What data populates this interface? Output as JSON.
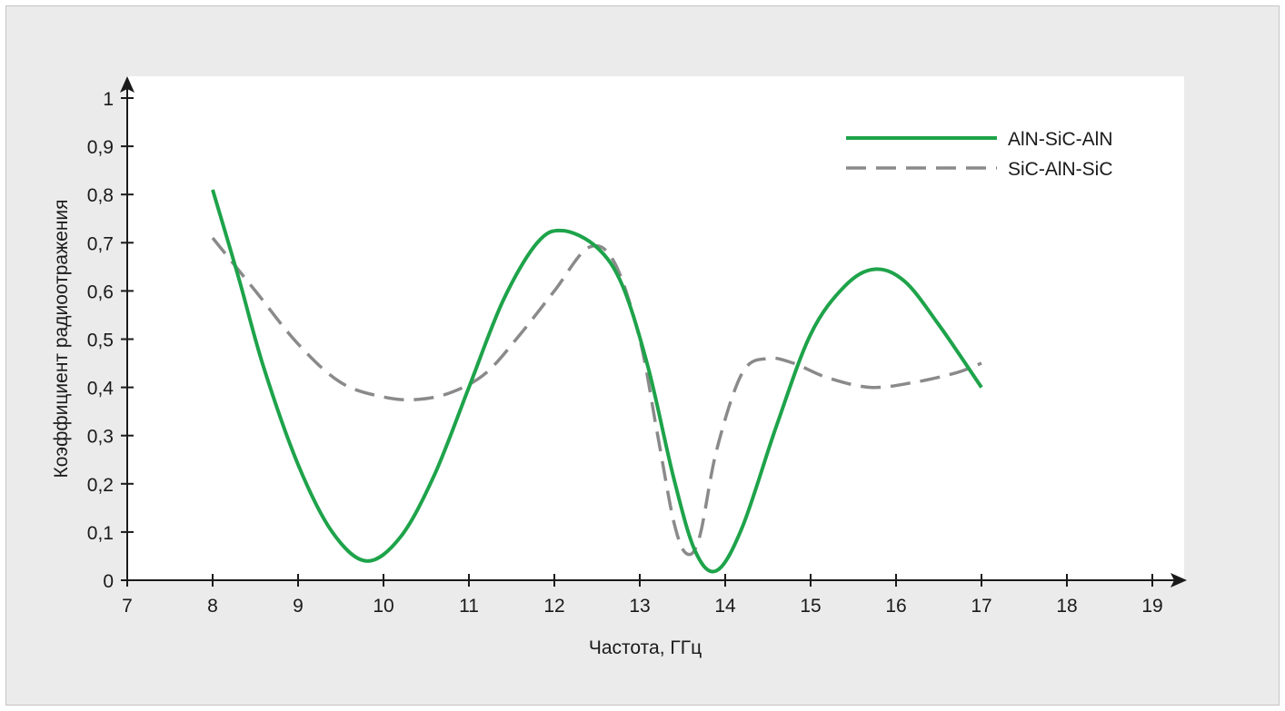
{
  "chart_data": {
    "type": "line",
    "title": "",
    "xlabel": "Частота, ГГц",
    "ylabel": "Коэффициент радиоотражения",
    "xlim": [
      7,
      19
    ],
    "ylim": [
      0,
      1
    ],
    "x_ticks": [
      "7",
      "8",
      "9",
      "10",
      "11",
      "12",
      "13",
      "14",
      "15",
      "16",
      "17",
      "18",
      "19"
    ],
    "y_ticks": [
      "0",
      "0,1",
      "0,2",
      "0,3",
      "0,4",
      "0,5",
      "0,6",
      "0,7",
      "0,8",
      "0,9",
      "1"
    ],
    "grid": false,
    "legend_position": "top-right",
    "series": [
      {
        "name": "AlN-SiC-AlN",
        "color": "#1ea34a",
        "style": "solid",
        "x": [
          8.0,
          8.3,
          8.6,
          9.0,
          9.4,
          9.8,
          10.2,
          10.6,
          11.0,
          11.4,
          11.8,
          12.1,
          12.5,
          12.8,
          13.1,
          13.4,
          13.65,
          13.9,
          14.2,
          14.6,
          15.0,
          15.4,
          15.75,
          16.1,
          16.5,
          17.0
        ],
        "y": [
          0.81,
          0.63,
          0.44,
          0.24,
          0.1,
          0.04,
          0.09,
          0.22,
          0.4,
          0.58,
          0.7,
          0.725,
          0.69,
          0.61,
          0.44,
          0.21,
          0.06,
          0.02,
          0.11,
          0.32,
          0.51,
          0.61,
          0.645,
          0.62,
          0.53,
          0.4
        ]
      },
      {
        "name": "SiC-AlN-SiC",
        "color": "#8a8a8a",
        "style": "dashed",
        "x": [
          8.0,
          8.5,
          9.0,
          9.5,
          10.0,
          10.4,
          10.8,
          11.2,
          11.6,
          12.0,
          12.4,
          12.7,
          13.0,
          13.2,
          13.4,
          13.55,
          13.7,
          13.9,
          14.2,
          14.5,
          14.8,
          15.2,
          15.7,
          16.2,
          16.7,
          17.0
        ],
        "y": [
          0.71,
          0.6,
          0.49,
          0.41,
          0.38,
          0.375,
          0.39,
          0.43,
          0.51,
          0.6,
          0.69,
          0.66,
          0.5,
          0.31,
          0.12,
          0.055,
          0.09,
          0.27,
          0.43,
          0.46,
          0.45,
          0.42,
          0.4,
          0.41,
          0.43,
          0.45
        ]
      }
    ]
  }
}
